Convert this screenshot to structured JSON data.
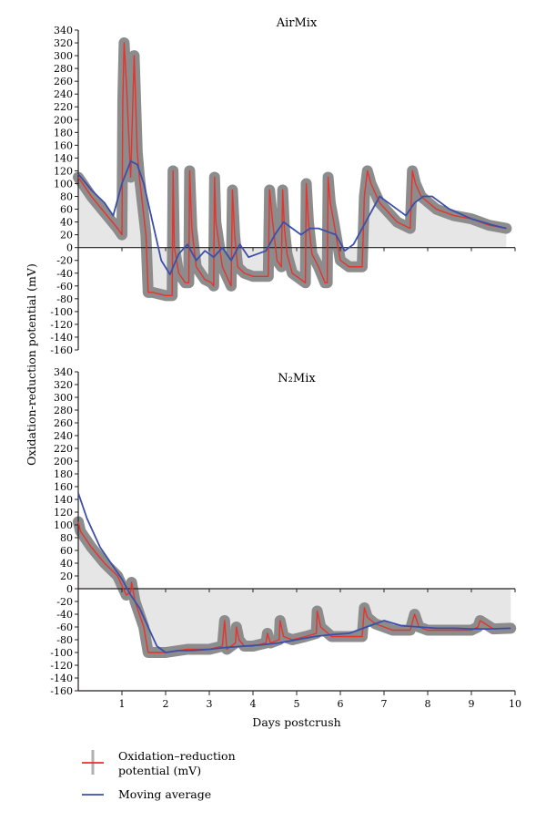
{
  "chart_data": {
    "type": "line",
    "ylabel": "Oxidation-reduction potential (mV)",
    "xlabel": "Days postcrush",
    "x_ticks": [
      1,
      2,
      3,
      4,
      5,
      6,
      7,
      8,
      9,
      10
    ],
    "y_ticks": [
      340,
      320,
      300,
      280,
      260,
      240,
      220,
      200,
      180,
      160,
      140,
      120,
      100,
      80,
      60,
      40,
      20,
      0,
      -20,
      -40,
      -60,
      -80,
      -100,
      -120,
      -140,
      -160
    ],
    "xlim": [
      0,
      10
    ],
    "ylim": [
      -160,
      340
    ],
    "colors": {
      "orp": "#e8322b",
      "moving_average": "#3c4fa8",
      "band": "#8c8c8c",
      "fill": "#e6e6e6",
      "axis": "#231f20"
    },
    "legend": {
      "placement": "bottom-left",
      "entries": [
        {
          "label_line1": "Oxidation–reduction",
          "label_line2": "potential (mV)",
          "color": "#e8322b"
        },
        {
          "label": "Moving average",
          "color": "#3c4fa8"
        }
      ]
    },
    "panels": [
      {
        "title": "AirMix",
        "series": [
          {
            "name": "Oxidation–reduction potential (mV)",
            "x": [
              0.0,
              0.3,
              0.6,
              0.9,
              1.0,
              1.02,
              1.05,
              1.1,
              1.2,
              1.28,
              1.35,
              1.4,
              1.45,
              1.5,
              1.55,
              1.6,
              1.62,
              1.7,
              2.0,
              2.15,
              2.17,
              2.2,
              2.3,
              2.45,
              2.53,
              2.55,
              2.6,
              2.7,
              2.9,
              3.05,
              3.1,
              3.12,
              3.15,
              3.3,
              3.5,
              3.53,
              3.58,
              3.65,
              3.8,
              4.0,
              4.2,
              4.35,
              4.38,
              4.45,
              4.55,
              4.65,
              4.68,
              4.72,
              4.78,
              4.9,
              5.1,
              5.2,
              5.22,
              5.27,
              5.35,
              5.5,
              5.65,
              5.7,
              5.72,
              5.77,
              5.85,
              6.0,
              6.2,
              6.5,
              6.55,
              6.62,
              6.7,
              6.9,
              7.1,
              7.3,
              7.6,
              7.65,
              7.72,
              7.85,
              8.2,
              8.6,
              9.0,
              9.4,
              9.8
            ],
            "y": [
              110,
              80,
              55,
              30,
              20,
              230,
              320,
              260,
              110,
              300,
              150,
              110,
              80,
              50,
              20,
              -70,
              -70,
              -70,
              -75,
              -75,
              120,
              0,
              -40,
              -55,
              -55,
              120,
              30,
              -30,
              -50,
              -55,
              -60,
              110,
              40,
              -30,
              -60,
              90,
              20,
              -30,
              -40,
              -45,
              -45,
              -45,
              90,
              40,
              -20,
              -30,
              90,
              30,
              -10,
              -40,
              -50,
              -55,
              100,
              40,
              -10,
              -30,
              -55,
              -55,
              110,
              70,
              40,
              -20,
              -30,
              -30,
              80,
              120,
              100,
              70,
              55,
              40,
              30,
              120,
              100,
              80,
              60,
              50,
              45,
              35,
              30
            ]
          },
          {
            "name": "Moving average",
            "x": [
              0.0,
              0.3,
              0.6,
              0.8,
              1.0,
              1.2,
              1.35,
              1.5,
              1.7,
              1.9,
              2.1,
              2.3,
              2.5,
              2.7,
              2.9,
              3.1,
              3.3,
              3.5,
              3.7,
              3.9,
              4.1,
              4.3,
              4.5,
              4.7,
              4.9,
              5.1,
              5.3,
              5.5,
              5.7,
              5.9,
              6.1,
              6.3,
              6.5,
              6.7,
              6.9,
              7.1,
              7.3,
              7.5,
              7.7,
              7.9,
              8.1,
              8.5,
              9.0,
              9.5,
              9.8
            ],
            "y": [
              115,
              90,
              70,
              50,
              100,
              135,
              130,
              100,
              40,
              -20,
              -42,
              -10,
              5,
              -20,
              -5,
              -15,
              0,
              -20,
              5,
              -15,
              -10,
              -5,
              20,
              40,
              30,
              20,
              30,
              30,
              25,
              20,
              -5,
              5,
              30,
              55,
              80,
              70,
              60,
              50,
              70,
              80,
              80,
              60,
              45,
              35,
              30
            ]
          }
        ]
      },
      {
        "title": "N₂Mix",
        "series": [
          {
            "name": "Oxidation–reduction potential (mV)",
            "x": [
              0.0,
              0.05,
              0.3,
              0.6,
              0.9,
              1.1,
              1.2,
              1.22,
              1.3,
              1.5,
              1.6,
              1.7,
              2.0,
              2.5,
              3.0,
              3.3,
              3.35,
              3.4,
              3.6,
              3.62,
              3.68,
              3.8,
              4.0,
              4.3,
              4.33,
              4.4,
              4.6,
              4.62,
              4.7,
              4.9,
              5.2,
              5.45,
              5.47,
              5.55,
              5.8,
              6.1,
              6.5,
              6.55,
              6.62,
              6.8,
              7.0,
              7.2,
              7.6,
              7.7,
              7.8,
              8.0,
              8.5,
              9.0,
              9.15,
              9.2,
              9.5,
              9.9
            ],
            "y": [
              105,
              90,
              65,
              40,
              20,
              -10,
              -5,
              10,
              -20,
              -60,
              -100,
              -100,
              -100,
              -95,
              -95,
              -90,
              -50,
              -95,
              -85,
              -60,
              -80,
              -90,
              -90,
              -85,
              -70,
              -85,
              -80,
              -50,
              -75,
              -80,
              -75,
              -70,
              -35,
              -60,
              -75,
              -75,
              -75,
              -30,
              -45,
              -55,
              -60,
              -65,
              -65,
              -40,
              -60,
              -65,
              -65,
              -65,
              -60,
              -50,
              -63,
              -62
            ]
          },
          {
            "name": "Moving average",
            "x": [
              0.0,
              0.2,
              0.5,
              0.8,
              1.0,
              1.2,
              1.4,
              1.6,
              1.8,
              2.0,
              2.3,
              2.6,
              3.0,
              3.4,
              3.8,
              4.2,
              4.6,
              5.0,
              5.4,
              5.8,
              6.2,
              6.6,
              7.0,
              7.4,
              7.8,
              8.2,
              8.6,
              9.0,
              9.4,
              9.9
            ],
            "y": [
              150,
              110,
              65,
              35,
              15,
              -10,
              -30,
              -60,
              -90,
              -100,
              -97,
              -97,
              -95,
              -92,
              -90,
              -88,
              -85,
              -80,
              -75,
              -72,
              -70,
              -60,
              -50,
              -58,
              -60,
              -62,
              -62,
              -63,
              -63,
              -62
            ]
          }
        ]
      }
    ]
  }
}
